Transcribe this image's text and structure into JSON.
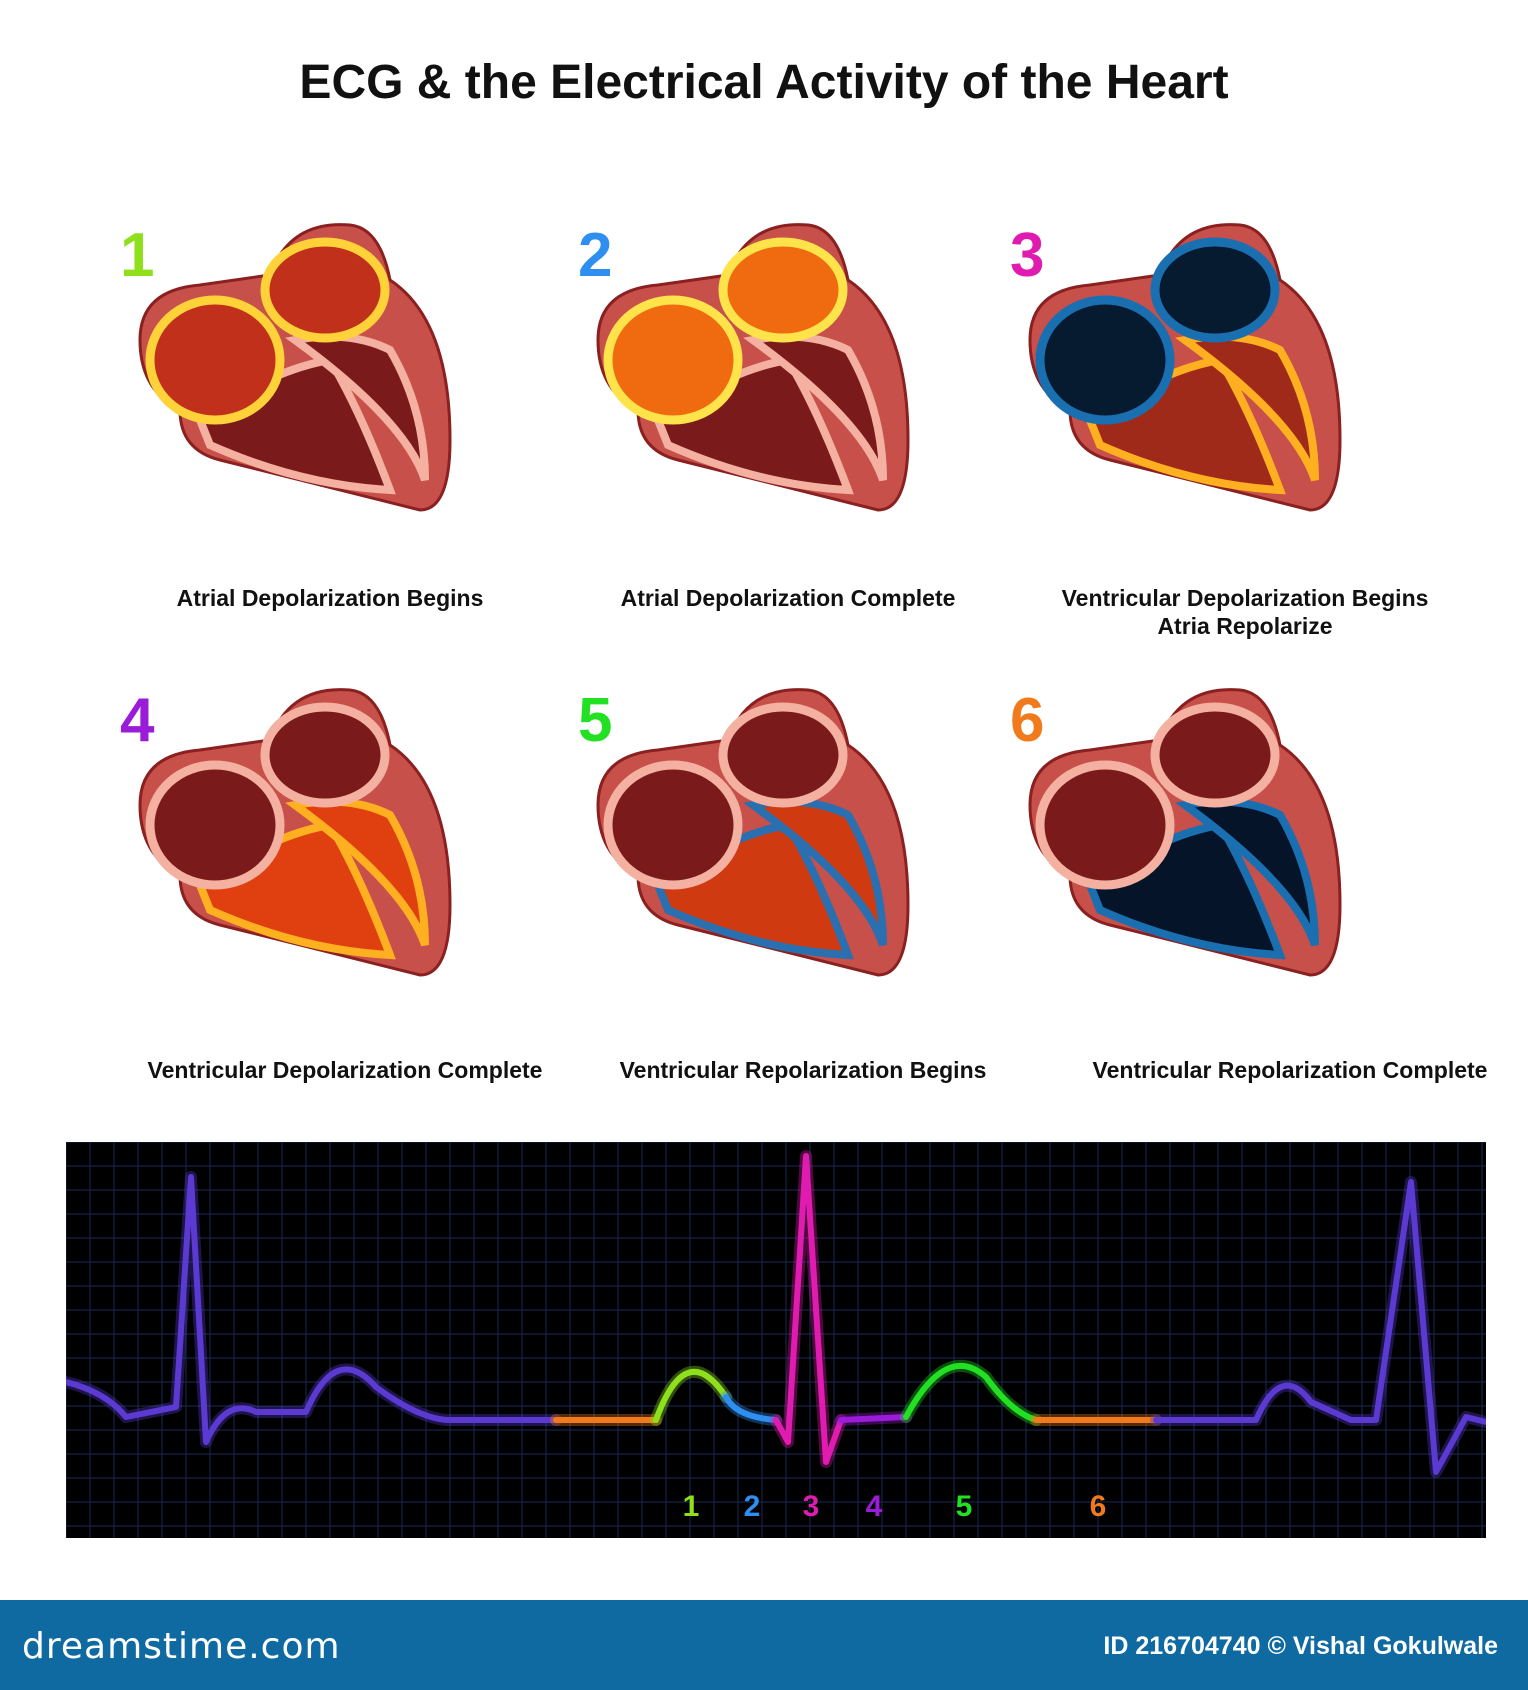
{
  "title": "ECG & the Electrical Activity of the Heart",
  "stages": [
    {
      "number": "1",
      "color": "#8fe01c",
      "caption_lines": [
        "Atrial Depolarization Begins"
      ]
    },
    {
      "number": "2",
      "color": "#2f8ff0",
      "caption_lines": [
        "Atrial Depolarization Complete"
      ]
    },
    {
      "number": "3",
      "color": "#e01cb0",
      "caption_lines": [
        "Ventricular Depolarization Begins",
        "Atria Repolarize"
      ]
    },
    {
      "number": "4",
      "color": "#9a1cd8",
      "caption_lines": [
        "Ventricular Depolarization Complete"
      ]
    },
    {
      "number": "5",
      "color": "#22e022",
      "caption_lines": [
        "Ventricular Repolarization Begins"
      ]
    },
    {
      "number": "6",
      "color": "#f07a1c",
      "caption_lines": [
        "Ventricular Repolarization Complete"
      ]
    }
  ],
  "ecg": {
    "labels": [
      {
        "text": "1",
        "color": "#8fe01c"
      },
      {
        "text": "2",
        "color": "#2f8ff0"
      },
      {
        "text": "3",
        "color": "#e01cb0"
      },
      {
        "text": "4",
        "color": "#9a1cd8"
      },
      {
        "text": "5",
        "color": "#22e022"
      },
      {
        "text": "6",
        "color": "#f07a1c"
      }
    ]
  },
  "footer": {
    "logo": "dreamstime.com",
    "credit": "ID 216704740 © Vishal Gokulwale"
  }
}
